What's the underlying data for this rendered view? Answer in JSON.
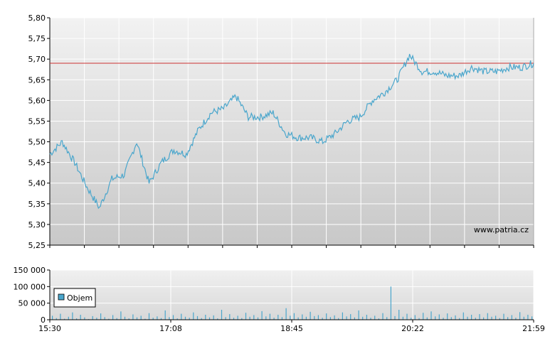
{
  "watermark": "www.patria.cz",
  "colors": {
    "line": "#4aa6cc",
    "volume": "#4aa6cc",
    "reference": "#cc3333",
    "grid": "#ffffff",
    "bg_top": "#f2f2f2",
    "bg_bottom": "#c8c8c8",
    "axis": "#000000"
  },
  "chart_data": [
    {
      "type": "line",
      "name": "price",
      "ylim": [
        5.25,
        5.8
      ],
      "y_ticks": [
        "5,80",
        "5,75",
        "5,70",
        "5,65",
        "5,60",
        "5,55",
        "5,50",
        "5,45",
        "5,40",
        "5,35",
        "5,30",
        "5,25"
      ],
      "reference_line": 5.69,
      "x": [
        "15:30",
        "15:40",
        "15:50",
        "16:00",
        "16:10",
        "16:20",
        "16:30",
        "16:40",
        "16:50",
        "17:00",
        "17:10",
        "17:20",
        "17:30",
        "17:40",
        "17:50",
        "18:00",
        "18:10",
        "18:20",
        "18:30",
        "18:40",
        "18:50",
        "19:00",
        "19:10",
        "19:20",
        "19:30",
        "19:40",
        "19:50",
        "20:00",
        "20:10",
        "20:20",
        "20:30",
        "20:40",
        "20:50",
        "21:00",
        "21:10",
        "21:20",
        "21:30",
        "21:40",
        "21:50",
        "21:59"
      ],
      "values": [
        5.47,
        5.5,
        5.45,
        5.39,
        5.34,
        5.41,
        5.42,
        5.5,
        5.4,
        5.45,
        5.48,
        5.47,
        5.53,
        5.57,
        5.58,
        5.61,
        5.56,
        5.56,
        5.57,
        5.52,
        5.51,
        5.51,
        5.5,
        5.52,
        5.55,
        5.56,
        5.6,
        5.62,
        5.65,
        5.71,
        5.67,
        5.67,
        5.66,
        5.66,
        5.68,
        5.67,
        5.67,
        5.68,
        5.68,
        5.69
      ]
    },
    {
      "type": "bar",
      "name": "volume",
      "legend": "Objem",
      "ylim": [
        0,
        150000
      ],
      "y_ticks": [
        "150 000",
        "100 000",
        "50 000",
        "0"
      ],
      "x_ticks": [
        "15:30",
        "17:08",
        "18:45",
        "20:22",
        "21:59"
      ],
      "values": [
        12000,
        5000,
        18000,
        3000,
        9000,
        22000,
        4000,
        15000,
        7000,
        2000,
        11000,
        6000,
        19000,
        8000,
        3000,
        14000,
        5000,
        25000,
        9000,
        4000,
        16000,
        7000,
        12000,
        3000,
        20000,
        6000,
        10000,
        5000,
        28000,
        8000,
        14000,
        4000,
        18000,
        9000,
        6000,
        22000,
        11000,
        5000,
        15000,
        7000,
        13000,
        4000,
        30000,
        8000,
        17000,
        6000,
        12000,
        5000,
        21000,
        9000,
        14000,
        7000,
        26000,
        10000,
        18000,
        6000,
        15000,
        8000,
        35000,
        12000,
        20000,
        7000,
        16000,
        9000,
        24000,
        11000,
        14000,
        6000,
        19000,
        8000,
        13000,
        5000,
        22000,
        10000,
        17000,
        7000,
        28000,
        9000,
        15000,
        6000,
        12000,
        4000,
        20000,
        8000,
        100000,
        11000,
        30000,
        9000,
        18000,
        6000,
        14000,
        5000,
        21000,
        7000,
        25000,
        10000,
        16000,
        6000,
        19000,
        8000,
        13000,
        5000,
        22000,
        9000,
        15000,
        6000,
        17000,
        7000,
        20000,
        9000,
        12000,
        5000,
        18000,
        8000,
        14000,
        6000,
        23000,
        9000,
        15000,
        10000
      ]
    }
  ]
}
